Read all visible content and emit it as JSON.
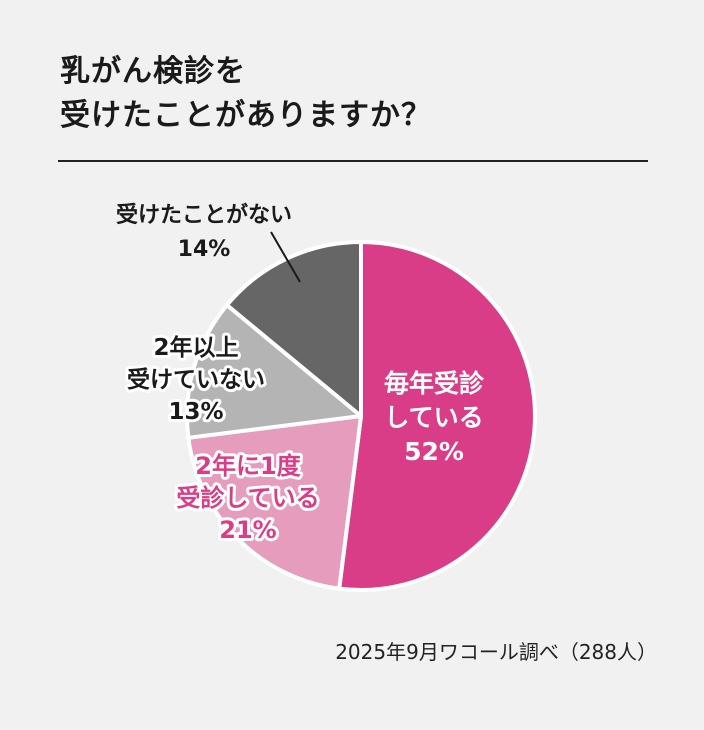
{
  "title": {
    "line1": "乳がん検診を",
    "line2": "受けたことがありますか？"
  },
  "chart_data": {
    "type": "pie",
    "title": "乳がん検診を受けたことがありますか？",
    "unit": "%",
    "slices": [
      {
        "label": "毎年受診している",
        "lines": [
          "毎年受診",
          "している"
        ],
        "value": 52,
        "color": "#d93d87"
      },
      {
        "label": "2年に1度受診している",
        "lines": [
          "2年に1度",
          "受診している"
        ],
        "value": 21,
        "color": "#e59cbd"
      },
      {
        "label": "2年以上受けていない",
        "lines": [
          "2年以上",
          "受けていない"
        ],
        "value": 13,
        "color": "#b4b4b4"
      },
      {
        "label": "受けたことがない",
        "lines": [
          "受けたことがない"
        ],
        "value": 14,
        "color": "#666666"
      }
    ]
  },
  "source": "2025年9月ワコール調べ（288人）"
}
